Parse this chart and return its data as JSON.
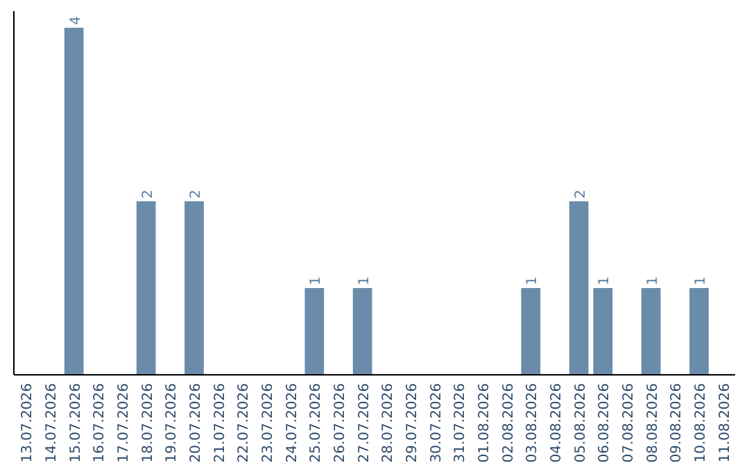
{
  "chart_data": {
    "type": "bar",
    "categories": [
      "13.07.2026",
      "14.07.2026",
      "15.07.2026",
      "16.07.2026",
      "17.07.2026",
      "18.07.2026",
      "19.07.2026",
      "20.07.2026",
      "21.07.2026",
      "22.07.2026",
      "23.07.2026",
      "24.07.2026",
      "25.07.2026",
      "26.07.2026",
      "27.07.2026",
      "28.07.2026",
      "29.07.2026",
      "30.07.2026",
      "31.07.2026",
      "01.08.2026",
      "02.08.2026",
      "03.08.2026",
      "04.08.2026",
      "05.08.2026",
      "06.08.2026",
      "07.08.2026",
      "08.08.2026",
      "09.08.2026",
      "10.08.2026",
      "11.08.2026"
    ],
    "values": [
      0,
      0,
      4,
      0,
      0,
      2,
      0,
      2,
      0,
      0,
      0,
      0,
      1,
      0,
      1,
      0,
      0,
      0,
      0,
      0,
      0,
      1,
      0,
      2,
      1,
      0,
      1,
      0,
      1,
      0
    ],
    "value_labels": [
      null,
      null,
      "4",
      null,
      null,
      "2",
      null,
      "2",
      null,
      null,
      null,
      null,
      "1",
      null,
      "1",
      null,
      null,
      null,
      null,
      null,
      null,
      "1",
      null,
      "2",
      "1",
      null,
      "1",
      null,
      "1",
      null
    ],
    "color": "#6a8caa",
    "tick_labels": "x"
  }
}
